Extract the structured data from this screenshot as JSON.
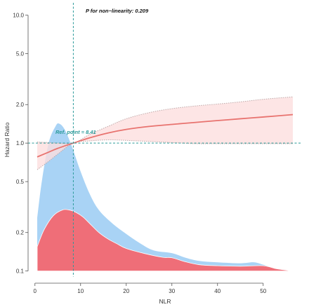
{
  "chart_data": {
    "type": "line",
    "title": "",
    "xlabel": "NLR",
    "ylabel": "Hazard Ratio",
    "x_ticks": [
      0,
      10,
      20,
      30,
      40,
      50
    ],
    "y_ticks": [
      0.1,
      0.2,
      0.5,
      1.0,
      2.0,
      5.0,
      10.0
    ],
    "y_tick_labels": [
      "0.1",
      "0.2",
      "0.5",
      "1.0",
      "2.0",
      "5.0",
      "10.0"
    ],
    "xlim": [
      -1.5,
      58.5
    ],
    "ylim": [
      0.09,
      12.5
    ],
    "y_scale": "log",
    "grid": false,
    "legend": "none",
    "annotations": {
      "p_value": "P for non−linearity: 0.209",
      "ref_point": "Ref. point = 8.41"
    },
    "reference": {
      "x": 8.41,
      "y": 1.0
    },
    "series": [
      {
        "type": "line",
        "color": "#e8736f",
        "x": [
          0.5,
          3,
          5,
          8.41,
          12,
          16,
          20,
          25,
          30,
          35,
          40,
          45,
          50,
          56.5
        ],
        "y": [
          0.78,
          0.85,
          0.91,
          1.0,
          1.1,
          1.2,
          1.28,
          1.35,
          1.4,
          1.45,
          1.5,
          1.55,
          1.6,
          1.67
        ],
        "ci_lower": [
          0.62,
          0.72,
          0.82,
          1.0,
          1.04,
          1.06,
          1.05,
          1.03,
          1.01,
          0.99,
          0.99,
          0.99,
          0.99,
          0.99
        ],
        "ci_upper": [
          1.02,
          1.01,
          1.0,
          1.0,
          1.17,
          1.35,
          1.55,
          1.73,
          1.86,
          1.95,
          2.02,
          2.1,
          2.2,
          2.3
        ]
      },
      {
        "type": "area",
        "color": "#a9d3f5",
        "x": [
          0.5,
          1.5,
          3,
          4.5,
          5.3,
          6.5,
          8,
          10,
          12,
          14,
          17,
          20,
          23,
          26,
          30,
          33,
          36,
          40,
          45,
          48,
          50,
          53,
          56.5
        ],
        "y": [
          0.26,
          0.5,
          1.0,
          1.35,
          1.42,
          1.28,
          0.96,
          0.6,
          0.4,
          0.3,
          0.235,
          0.195,
          0.165,
          0.145,
          0.138,
          0.127,
          0.12,
          0.117,
          0.115,
          0.117,
          0.112,
          0.104,
          0.1
        ]
      },
      {
        "type": "area",
        "color": "#ef6e78",
        "x": [
          0.5,
          2,
          4,
          6,
          7.5,
          9,
          10.5,
          12,
          14,
          16,
          18,
          20,
          24,
          28,
          30,
          33,
          36,
          40,
          45,
          50,
          53,
          56.5
        ],
        "y": [
          0.155,
          0.21,
          0.27,
          0.3,
          0.3,
          0.287,
          0.265,
          0.235,
          0.2,
          0.178,
          0.163,
          0.15,
          0.137,
          0.128,
          0.127,
          0.118,
          0.112,
          0.11,
          0.109,
          0.11,
          0.104,
          0.1
        ]
      }
    ]
  },
  "colors": {
    "hr_line": "#e8736f",
    "ci_fill": "#fcdede",
    "ci_border": "#bfa9a9",
    "density_blue": "#a9d3f5",
    "density_red": "#ef6e78",
    "reference_line": "#2a9a99",
    "axis": "#555555",
    "text": "#333333"
  }
}
